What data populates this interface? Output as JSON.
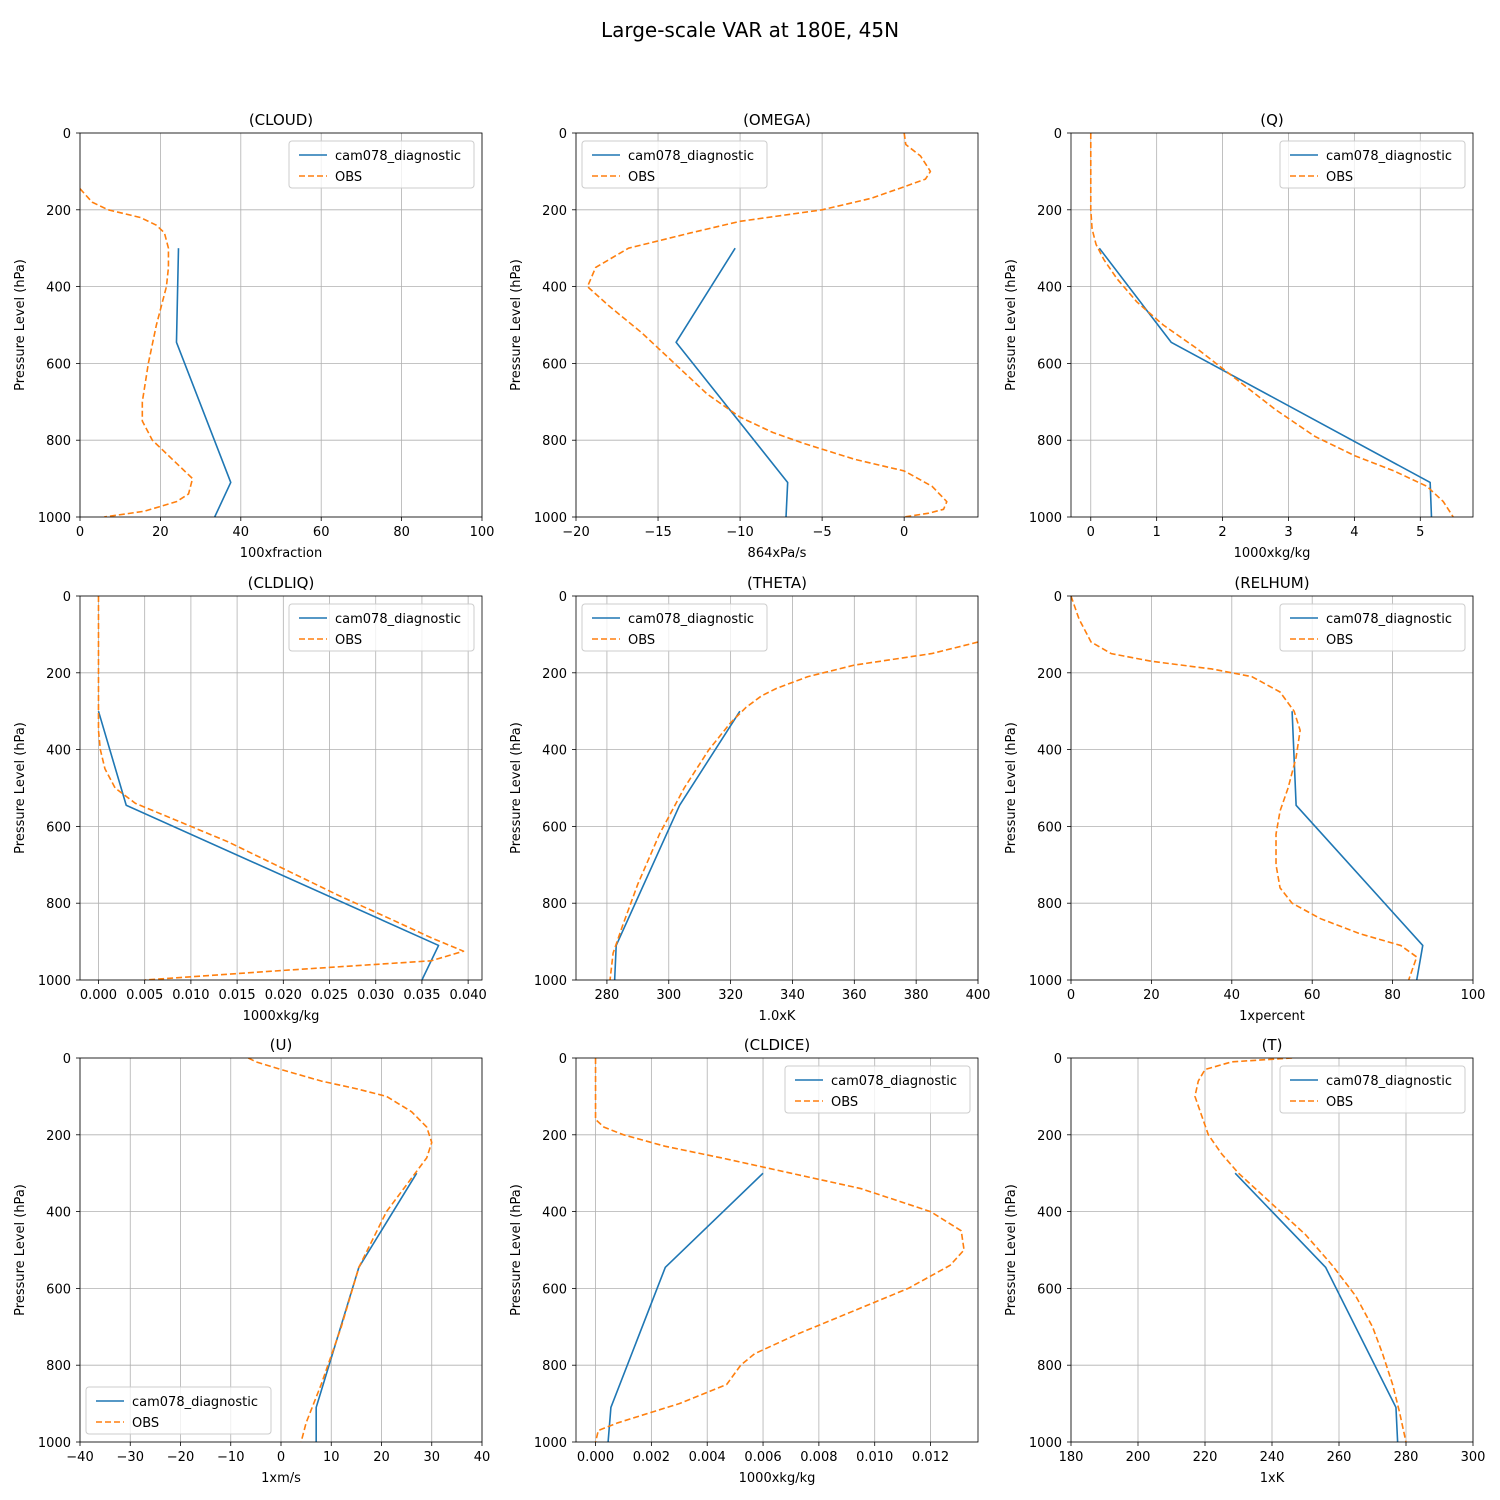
{
  "figure": {
    "title": "Large-scale VAR at 180E, 45N"
  },
  "colors": {
    "model": "#1f77b4",
    "obs": "#ff7f0e"
  },
  "chart_data": [
    {
      "type": "line",
      "title": "(CLOUD)",
      "xlabel": "100xfraction",
      "ylabel": "Pressure Level (hPa)",
      "xlim": [
        0,
        100
      ],
      "ylim": [
        1000,
        0
      ],
      "yinverted": true,
      "xticks": [
        0,
        20,
        40,
        60,
        80,
        100
      ],
      "xticklabels": [
        "0",
        "20",
        "40",
        "60",
        "80",
        "100"
      ],
      "yticks": [
        0,
        200,
        400,
        600,
        800,
        1000
      ],
      "yticklabels": [
        "0",
        "200",
        "400",
        "600",
        "800",
        "1000"
      ],
      "grid": true,
      "legend": "upper right",
      "series": [
        {
          "name": "cam078_diagnostic",
          "style": "solid",
          "x": [
            24.5,
            24,
            37.5,
            33.5
          ],
          "y": [
            300,
            545,
            910,
            1000
          ]
        },
        {
          "name": "OBS",
          "style": "dashed",
          "x": [
            0,
            3,
            7,
            15,
            19,
            21,
            22,
            22,
            21.5,
            19,
            17,
            15.5,
            15.5,
            18,
            23,
            28,
            27,
            24,
            16,
            6
          ],
          "y": [
            145,
            180,
            200,
            220,
            240,
            260,
            300,
            350,
            400,
            500,
            600,
            700,
            750,
            800,
            850,
            900,
            940,
            960,
            985,
            1000
          ]
        }
      ]
    },
    {
      "type": "line",
      "title": "(OMEGA)",
      "xlabel": "864xPa/s",
      "ylabel": "Pressure Level (hPa)",
      "xlim": [
        -20,
        4.5
      ],
      "ylim": [
        1000,
        0
      ],
      "yinverted": true,
      "xticks": [
        -20,
        -15,
        -10,
        -5,
        0
      ],
      "xticklabels": [
        "−20",
        "−15",
        "−10",
        "−5",
        "0"
      ],
      "yticks": [
        0,
        200,
        400,
        600,
        800,
        1000
      ],
      "yticklabels": [
        "0",
        "200",
        "400",
        "600",
        "800",
        "1000"
      ],
      "grid": true,
      "legend": "upper left",
      "series": [
        {
          "name": "cam078_diagnostic",
          "style": "solid",
          "x": [
            -10.3,
            -13.9,
            -7.1,
            -7.2
          ],
          "y": [
            300,
            545,
            910,
            1000
          ]
        },
        {
          "name": "OBS",
          "style": "dashed",
          "x": [
            0,
            0.1,
            1,
            1.6,
            1.3,
            0,
            -2,
            -5,
            -10,
            -13,
            -16.8,
            -18.8,
            -19.3,
            -18,
            -16,
            -14,
            -12,
            -10,
            -8,
            -6,
            -3,
            0,
            1.7,
            2.6,
            2.4,
            1.5,
            0
          ],
          "y": [
            0,
            30,
            60,
            100,
            120,
            140,
            170,
            200,
            230,
            260,
            300,
            350,
            400,
            450,
            520,
            600,
            680,
            740,
            780,
            810,
            850,
            880,
            920,
            960,
            980,
            990,
            1000
          ]
        }
      ]
    },
    {
      "type": "line",
      "title": "(Q)",
      "xlabel": "1000xkg/kg",
      "ylabel": "Pressure Level (hPa)",
      "xlim": [
        -0.3,
        5.8
      ],
      "ylim": [
        1000,
        0
      ],
      "yinverted": true,
      "xticks": [
        0,
        1,
        2,
        3,
        4,
        5
      ],
      "xticklabels": [
        "0",
        "1",
        "2",
        "3",
        "4",
        "5"
      ],
      "yticks": [
        0,
        200,
        400,
        600,
        800,
        1000
      ],
      "yticklabels": [
        "0",
        "200",
        "400",
        "600",
        "800",
        "1000"
      ],
      "grid": true,
      "legend": "upper right",
      "series": [
        {
          "name": "cam078_diagnostic",
          "style": "solid",
          "x": [
            0.13,
            1.22,
            5.15,
            5.17
          ],
          "y": [
            300,
            545,
            910,
            1000
          ]
        },
        {
          "name": "OBS",
          "style": "dashed",
          "x": [
            0,
            0,
            0,
            0.02,
            0.08,
            0.2,
            0.4,
            0.7,
            1.1,
            1.6,
            2.2,
            2.8,
            3.4,
            4.0,
            4.6,
            5.1,
            5.35,
            5.5
          ],
          "y": [
            0,
            100,
            200,
            250,
            290,
            330,
            380,
            440,
            500,
            560,
            640,
            720,
            790,
            840,
            880,
            920,
            960,
            1000
          ]
        }
      ]
    },
    {
      "type": "line",
      "title": "(CLDLIQ)",
      "xlabel": "1000xkg/kg",
      "ylabel": "Pressure Level (hPa)",
      "xlim": [
        -0.002,
        0.0415
      ],
      "ylim": [
        1000,
        0
      ],
      "yinverted": true,
      "xticks": [
        0,
        0.005,
        0.01,
        0.015,
        0.02,
        0.025,
        0.03,
        0.035,
        0.04
      ],
      "xticklabels": [
        "0.000",
        "0.005",
        "0.010",
        "0.015",
        "0.020",
        "0.025",
        "0.030",
        "0.035",
        "0.040"
      ],
      "yticks": [
        0,
        200,
        400,
        600,
        800,
        1000
      ],
      "yticklabels": [
        "0",
        "200",
        "400",
        "600",
        "800",
        "1000"
      ],
      "grid": true,
      "legend": "upper right",
      "series": [
        {
          "name": "cam078_diagnostic",
          "style": "solid",
          "x": [
            0,
            0.003,
            0.0368,
            0.035
          ],
          "y": [
            300,
            545,
            910,
            1000
          ]
        },
        {
          "name": "OBS",
          "style": "dashed",
          "x": [
            0,
            0,
            0,
            0.0002,
            0.0007,
            0.0018,
            0.004,
            0.008,
            0.014,
            0.02,
            0.026,
            0.0315,
            0.036,
            0.0395,
            0.036,
            0.02,
            0.005
          ],
          "y": [
            0,
            200,
            350,
            400,
            450,
            500,
            540,
            580,
            640,
            710,
            780,
            840,
            890,
            925,
            950,
            975,
            1000
          ]
        }
      ]
    },
    {
      "type": "line",
      "title": "(THETA)",
      "xlabel": "1.0xK",
      "ylabel": "Pressure Level (hPa)",
      "xlim": [
        270,
        400
      ],
      "ylim": [
        1000,
        0
      ],
      "yinverted": true,
      "xticks": [
        280,
        300,
        320,
        340,
        360,
        380,
        400
      ],
      "xticklabels": [
        "280",
        "300",
        "320",
        "340",
        "360",
        "380",
        "400"
      ],
      "yticks": [
        0,
        200,
        400,
        600,
        800,
        1000
      ],
      "yticklabels": [
        "0",
        "200",
        "400",
        "600",
        "800",
        "1000"
      ],
      "grid": true,
      "legend": "upper left",
      "series": [
        {
          "name": "cam078_diagnostic",
          "style": "solid",
          "x": [
            323,
            303.5,
            283,
            282.5
          ],
          "y": [
            300,
            545,
            910,
            1000
          ]
        },
        {
          "name": "OBS",
          "style": "dashed",
          "x": [
            400,
            385,
            360,
            345,
            335,
            330,
            325,
            320,
            313,
            305,
            297,
            290,
            285,
            282,
            281
          ],
          "y": [
            120,
            150,
            180,
            210,
            240,
            260,
            290,
            330,
            400,
            500,
            620,
            750,
            860,
            930,
            1000
          ]
        }
      ]
    },
    {
      "type": "line",
      "title": "(RELHUM)",
      "xlabel": "1xpercent",
      "ylabel": "Pressure Level (hPa)",
      "xlim": [
        0,
        100
      ],
      "ylim": [
        1000,
        0
      ],
      "yinverted": true,
      "xticks": [
        0,
        20,
        40,
        60,
        80,
        100
      ],
      "xticklabels": [
        "0",
        "20",
        "40",
        "60",
        "80",
        "100"
      ],
      "yticks": [
        0,
        200,
        400,
        600,
        800,
        1000
      ],
      "yticklabels": [
        "0",
        "200",
        "400",
        "600",
        "800",
        "1000"
      ],
      "grid": true,
      "legend": "upper right",
      "series": [
        {
          "name": "cam078_diagnostic",
          "style": "solid",
          "x": [
            55,
            56,
            87.5,
            86
          ],
          "y": [
            300,
            545,
            910,
            1000
          ]
        },
        {
          "name": "OBS",
          "style": "dashed",
          "x": [
            0,
            2,
            5,
            10,
            20,
            35,
            45,
            52,
            55.5,
            57,
            56,
            54,
            52,
            51,
            51,
            52,
            55,
            62,
            72,
            82,
            86,
            84
          ],
          "y": [
            0,
            60,
            120,
            150,
            170,
            190,
            210,
            250,
            300,
            350,
            420,
            500,
            560,
            620,
            700,
            760,
            800,
            840,
            880,
            910,
            940,
            1000
          ]
        }
      ]
    },
    {
      "type": "line",
      "title": "(U)",
      "xlabel": "1xm/s",
      "ylabel": "Pressure Level (hPa)",
      "xlim": [
        -40,
        40
      ],
      "ylim": [
        1000,
        0
      ],
      "yinverted": true,
      "xticks": [
        -40,
        -30,
        -20,
        -10,
        0,
        10,
        20,
        30,
        40
      ],
      "xticklabels": [
        "−40",
        "−30",
        "−20",
        "−10",
        "0",
        "10",
        "20",
        "30",
        "40"
      ],
      "yticks": [
        0,
        200,
        400,
        600,
        800,
        1000
      ],
      "yticklabels": [
        "0",
        "200",
        "400",
        "600",
        "800",
        "1000"
      ],
      "grid": true,
      "legend": "lower left",
      "series": [
        {
          "name": "cam078_diagnostic",
          "style": "solid",
          "x": [
            27,
            15.5,
            7,
            7
          ],
          "y": [
            300,
            545,
            910,
            1000
          ]
        },
        {
          "name": "OBS",
          "style": "dashed",
          "x": [
            -6.5,
            -5,
            0,
            8,
            15,
            21,
            26,
            29,
            30,
            29,
            25,
            21,
            15.5,
            12,
            8,
            5,
            4
          ],
          "y": [
            0,
            10,
            30,
            60,
            80,
            100,
            140,
            180,
            220,
            260,
            330,
            400,
            545,
            700,
            850,
            950,
            1000
          ]
        }
      ]
    },
    {
      "type": "line",
      "title": "(CLDICE)",
      "xlabel": "1000xkg/kg",
      "ylabel": "Pressure Level (hPa)",
      "xlim": [
        -0.0007,
        0.0137
      ],
      "ylim": [
        1000,
        0
      ],
      "yinverted": true,
      "xticks": [
        0,
        0.002,
        0.004,
        0.006,
        0.008,
        0.01,
        0.012
      ],
      "xticklabels": [
        "0.000",
        "0.002",
        "0.004",
        "0.006",
        "0.008",
        "0.010",
        "0.012"
      ],
      "yticks": [
        0,
        200,
        400,
        600,
        800,
        1000
      ],
      "yticklabels": [
        "0",
        "200",
        "400",
        "600",
        "800",
        "1000"
      ],
      "grid": true,
      "legend": "upper right",
      "series": [
        {
          "name": "cam078_diagnostic",
          "style": "solid",
          "x": [
            0.006,
            0.0025,
            0.00055,
            0.00045
          ],
          "y": [
            300,
            545,
            910,
            1000
          ]
        },
        {
          "name": "OBS",
          "style": "dashed",
          "x": [
            0,
            0,
            0,
            0.0003,
            0.001,
            0.0025,
            0.0045,
            0.007,
            0.0095,
            0.012,
            0.0131,
            0.0132,
            0.0127,
            0.0112,
            0.0092,
            0.0072,
            0.0057,
            0.0052,
            0.0047,
            0.003,
            0.0008,
            0.0001,
            0
          ],
          "y": [
            0,
            100,
            160,
            180,
            200,
            230,
            260,
            300,
            340,
            400,
            450,
            500,
            540,
            600,
            660,
            720,
            770,
            800,
            850,
            900,
            950,
            970,
            1000
          ]
        }
      ]
    },
    {
      "type": "line",
      "title": "(T)",
      "xlabel": "1xK",
      "ylabel": "Pressure Level (hPa)",
      "xlim": [
        180,
        300
      ],
      "ylim": [
        1000,
        0
      ],
      "yinverted": true,
      "xticks": [
        180,
        200,
        220,
        240,
        260,
        280,
        300
      ],
      "xticklabels": [
        "180",
        "200",
        "220",
        "240",
        "260",
        "280",
        "300"
      ],
      "yticks": [
        0,
        200,
        400,
        600,
        800,
        1000
      ],
      "yticklabels": [
        "0",
        "200",
        "400",
        "600",
        "800",
        "1000"
      ],
      "grid": true,
      "legend": "upper right",
      "series": [
        {
          "name": "cam078_diagnostic",
          "style": "solid",
          "x": [
            229,
            256,
            277,
            277.5
          ],
          "y": [
            300,
            545,
            910,
            1000
          ]
        },
        {
          "name": "OBS",
          "style": "dashed",
          "x": [
            246,
            228,
            220,
            218,
            217,
            219,
            221,
            225,
            230,
            240,
            250,
            258,
            265,
            270,
            273,
            276,
            278,
            280
          ],
          "y": [
            0,
            10,
            30,
            60,
            100,
            150,
            200,
            250,
            300,
            380,
            460,
            540,
            620,
            700,
            770,
            850,
            920,
            1000
          ]
        }
      ]
    }
  ]
}
